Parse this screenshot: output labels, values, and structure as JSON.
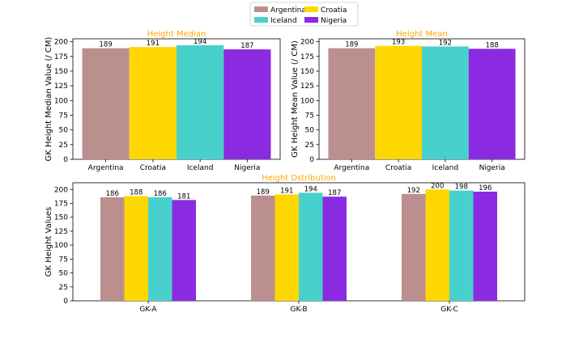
{
  "colors": {
    "Argentina": "#bc8f8f",
    "Croatia": "#ffd700",
    "Iceland": "#48d1cc",
    "Nigeria": "#8a2be2",
    "title": "#ffa500"
  },
  "legend": [
    "Argentina",
    "Croatia",
    "Iceland",
    "Nigeria"
  ],
  "chart_data": [
    {
      "type": "bar",
      "title": "Height Median",
      "xlabel": "",
      "ylabel": "GK Height Median Value (/ CM)",
      "categories": [
        "Argentina",
        "Croatia",
        "Iceland",
        "Nigeria"
      ],
      "values": [
        189,
        191,
        194,
        187
      ],
      "ylim": [
        0,
        205
      ],
      "yticks": [
        0,
        25,
        50,
        75,
        100,
        125,
        150,
        175,
        200
      ]
    },
    {
      "type": "bar",
      "title": "Height Mean",
      "xlabel": "",
      "ylabel": "GK Height Mean Value (/ CM)",
      "categories": [
        "Argentina",
        "Croatia",
        "Iceland",
        "Nigeria"
      ],
      "values": [
        189,
        193,
        192,
        188
      ],
      "ylim": [
        0,
        205
      ],
      "yticks": [
        0,
        25,
        50,
        75,
        100,
        125,
        150,
        175,
        200
      ]
    },
    {
      "type": "bar",
      "title": "Height Dstribution",
      "xlabel": "",
      "ylabel": "GK Height Values",
      "categories": [
        "GK-A",
        "GK-B",
        "GK-C"
      ],
      "series": [
        {
          "name": "Argentina",
          "values": [
            186,
            189,
            192
          ]
        },
        {
          "name": "Croatia",
          "values": [
            188,
            191,
            200
          ]
        },
        {
          "name": "Iceland",
          "values": [
            186,
            194,
            198
          ]
        },
        {
          "name": "Nigeria",
          "values": [
            181,
            187,
            196
          ]
        }
      ],
      "ylim": [
        0,
        212
      ],
      "yticks": [
        0,
        25,
        50,
        75,
        100,
        125,
        150,
        175,
        200
      ]
    }
  ]
}
